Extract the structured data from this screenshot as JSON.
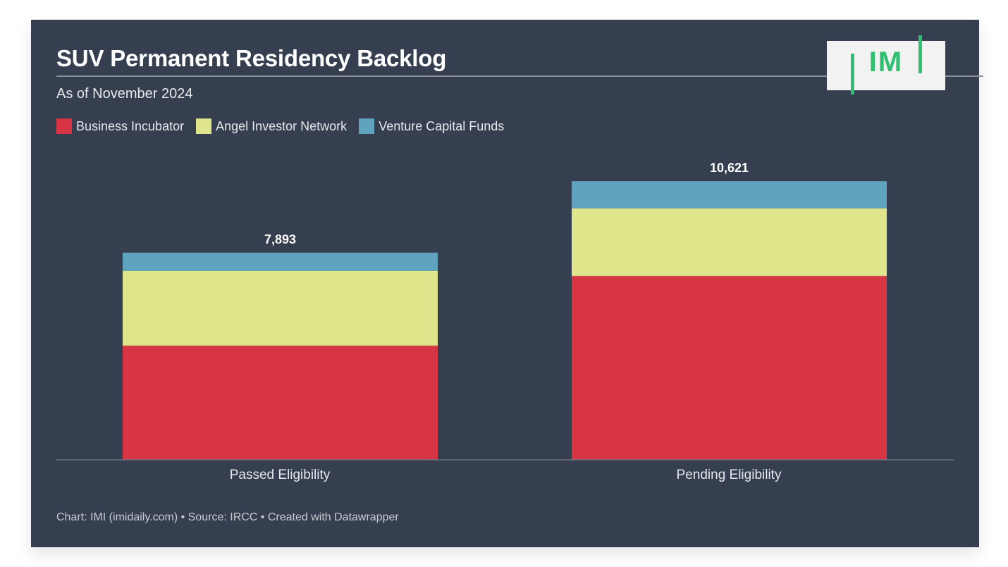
{
  "header": {
    "title": "SUV Permanent Residency Backlog",
    "subtitle": "As of November 2024"
  },
  "logo": {
    "text": "IM",
    "color": "#2fbf71"
  },
  "footer": {
    "text": "Chart: IMI (imidaily.com) • Source: IRCC • Created with Datawrapper"
  },
  "colors": {
    "background": "#353f4f",
    "business_incubator": "#d83544",
    "angel_investor_network": "#dfe58b",
    "venture_capital_funds": "#5fa3bf"
  },
  "chart_data": {
    "type": "bar",
    "stacked": true,
    "categories": [
      "Passed Eligibility",
      "Pending Eligibility"
    ],
    "series": [
      {
        "name": "Business Incubator",
        "color": "#d83544",
        "values": [
          4350,
          7010
        ]
      },
      {
        "name": "Angel Investor Network",
        "color": "#dfe58b",
        "values": [
          2860,
          2580
        ]
      },
      {
        "name": "Venture Capital Funds",
        "color": "#5fa3bf",
        "values": [
          683,
          1031
        ]
      }
    ],
    "totals": [
      7893,
      10621
    ],
    "total_labels": [
      "7,893",
      "10,621"
    ],
    "ylim": [
      0,
      10621
    ],
    "legend_position": "top-left",
    "grid": false
  }
}
